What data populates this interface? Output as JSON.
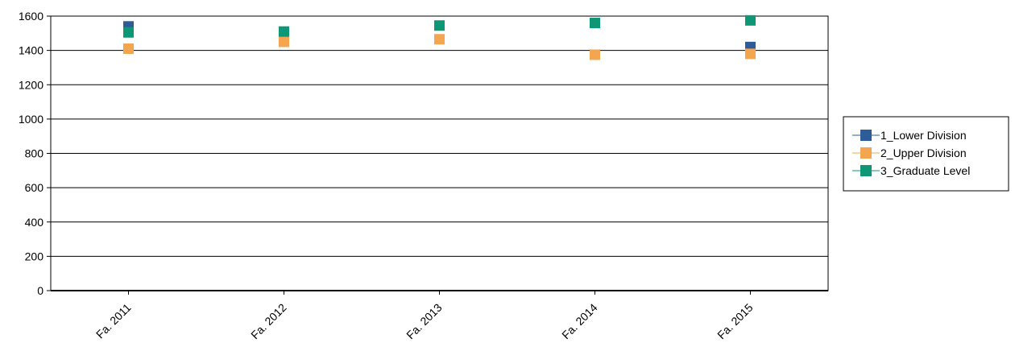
{
  "chart_data": {
    "type": "scatter",
    "title": "",
    "xlabel": "",
    "ylabel": "",
    "categories": [
      "Fa. 2011",
      "Fa. 2012",
      "Fa. 2013",
      "Fa. 2014",
      "Fa. 2015"
    ],
    "ylim": [
      0,
      1600
    ],
    "yticks": [
      0,
      200,
      400,
      600,
      800,
      1000,
      1200,
      1400,
      1600
    ],
    "grid": true,
    "legend_position": "right",
    "series": [
      {
        "name": "1_Lower Division",
        "color": "#2E5C99",
        "values": [
          1540,
          null,
          null,
          null,
          1420
        ]
      },
      {
        "name": "2_Upper Division",
        "color": "#F4A54F",
        "values": [
          1410,
          1450,
          1465,
          1375,
          1380
        ]
      },
      {
        "name": "3_Graduate Level",
        "color": "#0E9774",
        "values": [
          1505,
          1510,
          1545,
          1560,
          1575
        ]
      }
    ]
  }
}
